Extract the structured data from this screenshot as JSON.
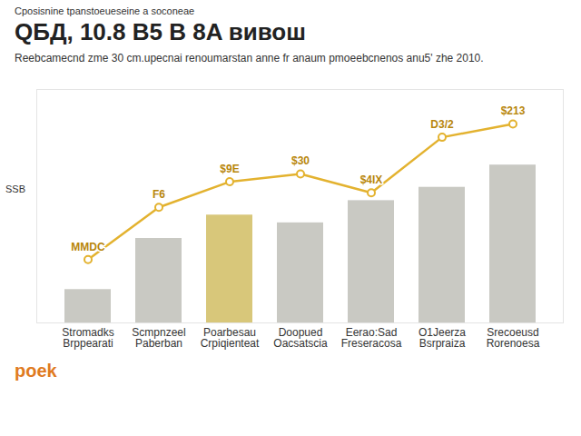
{
  "chart_data": {
    "type": "bar",
    "header": "Cposisnine tpanstoeueseine a soconeae",
    "title": "QБД, 10.8 B5 B 8A вивош",
    "subtitle": "Reebcamecnd zme 30 cm.upecnai renoumarstan anne fr anaum pmoeebcnenos anu5' zhe 2010.",
    "ylabel": "SSB",
    "categories": [
      "Stromadks",
      "Scmpnzeel",
      "Poarbesau",
      "Doopued",
      "Eerao:Sad",
      "O1Jeerza",
      "Srecoeusd"
    ],
    "x_sublabels": [
      "Brppearati",
      "Paberban",
      "Crpiqienteat",
      "Oacsatscia",
      "Freseracosa",
      "Bsrpraiza",
      "Rorenoesa"
    ],
    "values": [
      30,
      76,
      97,
      90,
      110,
      122,
      142
    ],
    "colors": [
      "#c9c9c3",
      "#c9c9c3",
      "#d8c77a",
      "#c9c9c3",
      "#c9c9c3",
      "#c9c9c3",
      "#c9c9c3"
    ],
    "line": {
      "values": [
        57,
        104,
        127,
        134,
        117,
        167,
        179
      ],
      "color": "#e3b22f",
      "marker": "circle"
    },
    "annotations": [
      {
        "text": "MMDC",
        "category": "Stromadks"
      },
      {
        "text": "F6",
        "category": "Scmpnzeel"
      },
      {
        "text": "$9E",
        "category": "Poarbesau"
      },
      {
        "text": "$30",
        "category": "Doopued"
      },
      {
        "text": "$4IX",
        "category": "Eerao:Sad"
      },
      {
        "text": "D3/2",
        "category": "O1Jeerza"
      },
      {
        "text": "$213",
        "category": "Srecoeusd"
      }
    ],
    "ylim": [
      0,
      210
    ],
    "tick_labels": "x",
    "grid": false,
    "footer": "poek"
  }
}
